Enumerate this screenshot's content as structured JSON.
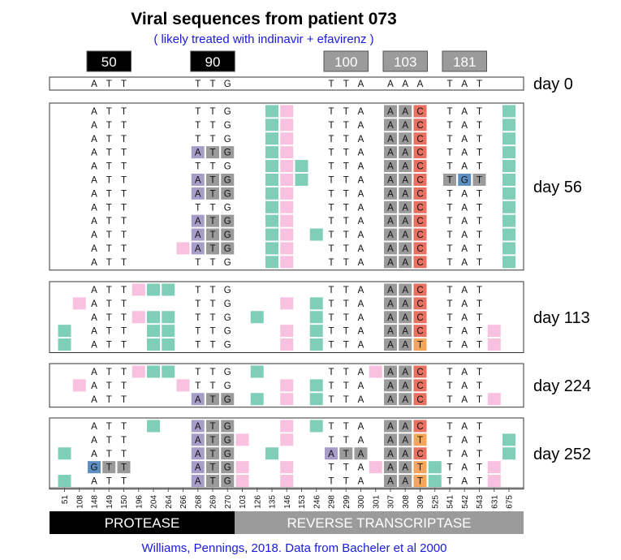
{
  "title": "Viral sequences from patient 073",
  "subtitle": "( likely treated with indinavir + efavirenz )",
  "citation": "Williams, Pennings, 2018. Data from Bacheler et al 2000",
  "colors": {
    "pink": "#f7c1df",
    "teal": "#7fcfb8",
    "purple": "#a79dc9",
    "darkgray": "#9a9a9a",
    "red": "#e87061",
    "orange": "#f5a55a",
    "blue": "#5e8fc2",
    "black": "#000000",
    "midgray": "#9b9b9b",
    "protease_bar": "#000000",
    "rt_bar": "#9b9b9b"
  },
  "codon_labels": [
    {
      "label": "50",
      "style": "black"
    },
    {
      "label": "90",
      "style": "black"
    },
    {
      "label": "100",
      "style": "gray"
    },
    {
      "label": "103",
      "style": "gray"
    },
    {
      "label": "181",
      "style": "gray"
    }
  ],
  "positions": [
    "51",
    "108",
    "148",
    "149",
    "150",
    "196",
    "204",
    "264",
    "266",
    "268",
    "269",
    "270",
    "103",
    "126",
    "135",
    "146",
    "153",
    "246",
    "298",
    "299",
    "300",
    "301",
    "307",
    "308",
    "309",
    "525",
    "541",
    "542",
    "543",
    "631",
    "675"
  ],
  "regions": {
    "protease": "PROTEASE",
    "rt": "REVERSE TRANSCRIPTASE"
  },
  "panels": [
    {
      "label": "day 0",
      "rows": [
        {
          "letters": {
            "148": "A",
            "149": "T",
            "150": "T",
            "268": "T",
            "269": "T",
            "270": "G",
            "298": "T",
            "299": "T",
            "300": "A",
            "307": "A",
            "308": "A",
            "309": "A",
            "541": "T",
            "542": "A",
            "543": "T"
          },
          "cells": {}
        }
      ]
    },
    {
      "label": "day 56",
      "rows": [
        {
          "letters": {
            "148": "A",
            "149": "T",
            "150": "T",
            "268": "T",
            "269": "T",
            "270": "G",
            "298": "T",
            "299": "T",
            "300": "A",
            "307": "A",
            "308": "A",
            "309": "C",
            "541": "T",
            "542": "A",
            "543": "T"
          },
          "cells": {
            "135": "teal",
            "146": "pink",
            "307": "darkgray",
            "308": "darkgray",
            "309": "red",
            "675": "teal"
          }
        },
        {
          "letters": {
            "148": "A",
            "149": "T",
            "150": "T",
            "268": "T",
            "269": "T",
            "270": "G",
            "298": "T",
            "299": "T",
            "300": "A",
            "307": "A",
            "308": "A",
            "309": "C",
            "541": "T",
            "542": "A",
            "543": "T"
          },
          "cells": {
            "135": "teal",
            "146": "pink",
            "307": "darkgray",
            "308": "darkgray",
            "309": "red",
            "675": "teal"
          }
        },
        {
          "letters": {
            "148": "A",
            "149": "T",
            "150": "T",
            "268": "T",
            "269": "T",
            "270": "G",
            "298": "T",
            "299": "T",
            "300": "A",
            "307": "A",
            "308": "A",
            "309": "C",
            "541": "T",
            "542": "A",
            "543": "T"
          },
          "cells": {
            "135": "teal",
            "146": "pink",
            "307": "darkgray",
            "308": "darkgray",
            "309": "red",
            "675": "teal"
          }
        },
        {
          "letters": {
            "148": "A",
            "149": "T",
            "150": "T",
            "268": "A",
            "269": "T",
            "270": "G",
            "298": "T",
            "299": "T",
            "300": "A",
            "307": "A",
            "308": "A",
            "309": "C",
            "541": "T",
            "542": "A",
            "543": "T"
          },
          "cells": {
            "135": "teal",
            "146": "pink",
            "268": "purple",
            "269": "darkgray",
            "270": "darkgray",
            "307": "darkgray",
            "308": "darkgray",
            "309": "red",
            "675": "teal"
          }
        },
        {
          "letters": {
            "148": "A",
            "149": "T",
            "150": "T",
            "268": "T",
            "269": "T",
            "270": "G",
            "298": "T",
            "299": "T",
            "300": "A",
            "307": "A",
            "308": "A",
            "309": "C",
            "541": "T",
            "542": "A",
            "543": "T"
          },
          "cells": {
            "135": "teal",
            "146": "pink",
            "153": "teal",
            "307": "darkgray",
            "308": "darkgray",
            "309": "red",
            "675": "teal"
          }
        },
        {
          "letters": {
            "148": "A",
            "149": "T",
            "150": "T",
            "268": "A",
            "269": "T",
            "270": "G",
            "298": "T",
            "299": "T",
            "300": "A",
            "307": "A",
            "308": "A",
            "309": "C",
            "541": "T",
            "542": "G",
            "543": "T"
          },
          "cells": {
            "135": "teal",
            "146": "pink",
            "153": "teal",
            "268": "purple",
            "269": "darkgray",
            "270": "darkgray",
            "307": "darkgray",
            "308": "darkgray",
            "309": "red",
            "541": "darkgray",
            "542": "blue",
            "543": "darkgray",
            "675": "teal"
          }
        },
        {
          "letters": {
            "148": "A",
            "149": "T",
            "150": "T",
            "268": "A",
            "269": "T",
            "270": "G",
            "298": "T",
            "299": "T",
            "300": "A",
            "307": "A",
            "308": "A",
            "309": "C",
            "541": "T",
            "542": "A",
            "543": "T"
          },
          "cells": {
            "135": "teal",
            "146": "pink",
            "268": "purple",
            "269": "darkgray",
            "270": "darkgray",
            "307": "darkgray",
            "308": "darkgray",
            "309": "red",
            "675": "teal"
          }
        },
        {
          "letters": {
            "148": "A",
            "149": "T",
            "150": "T",
            "268": "T",
            "269": "T",
            "270": "G",
            "298": "T",
            "299": "T",
            "300": "A",
            "307": "A",
            "308": "A",
            "309": "C",
            "541": "T",
            "542": "A",
            "543": "T"
          },
          "cells": {
            "135": "teal",
            "146": "pink",
            "307": "darkgray",
            "308": "darkgray",
            "309": "red",
            "675": "teal"
          }
        },
        {
          "letters": {
            "148": "A",
            "149": "T",
            "150": "T",
            "268": "A",
            "269": "T",
            "270": "G",
            "298": "T",
            "299": "T",
            "300": "A",
            "307": "A",
            "308": "A",
            "309": "C",
            "541": "T",
            "542": "A",
            "543": "T"
          },
          "cells": {
            "135": "teal",
            "146": "pink",
            "268": "purple",
            "269": "darkgray",
            "270": "darkgray",
            "307": "darkgray",
            "308": "darkgray",
            "309": "red",
            "675": "teal"
          }
        },
        {
          "letters": {
            "148": "A",
            "149": "T",
            "150": "T",
            "268": "A",
            "269": "T",
            "270": "G",
            "298": "T",
            "299": "T",
            "300": "A",
            "307": "A",
            "308": "A",
            "309": "C",
            "541": "T",
            "542": "A",
            "543": "T"
          },
          "cells": {
            "135": "teal",
            "146": "pink",
            "246": "teal",
            "268": "purple",
            "269": "darkgray",
            "270": "darkgray",
            "307": "darkgray",
            "308": "darkgray",
            "309": "red",
            "675": "teal"
          }
        },
        {
          "letters": {
            "148": "A",
            "149": "T",
            "150": "T",
            "268": "A",
            "269": "T",
            "270": "G",
            "298": "T",
            "299": "T",
            "300": "A",
            "307": "A",
            "308": "A",
            "309": "C",
            "541": "T",
            "542": "A",
            "543": "T"
          },
          "cells": {
            "135": "teal",
            "146": "pink",
            "266": "pink",
            "268": "purple",
            "269": "darkgray",
            "270": "darkgray",
            "307": "darkgray",
            "308": "darkgray",
            "309": "red",
            "675": "teal"
          }
        },
        {
          "letters": {
            "148": "A",
            "149": "T",
            "150": "T",
            "268": "T",
            "269": "T",
            "270": "G",
            "298": "T",
            "299": "T",
            "300": "A",
            "307": "A",
            "308": "A",
            "309": "C",
            "541": "T",
            "542": "A",
            "543": "T"
          },
          "cells": {
            "135": "teal",
            "146": "pink",
            "307": "darkgray",
            "308": "darkgray",
            "309": "red",
            "675": "teal"
          }
        }
      ]
    },
    {
      "label": "day 113",
      "rows": [
        {
          "letters": {
            "148": "A",
            "149": "T",
            "150": "T",
            "268": "T",
            "269": "T",
            "270": "G",
            "298": "T",
            "299": "T",
            "300": "A",
            "307": "A",
            "308": "A",
            "309": "C",
            "541": "T",
            "542": "A",
            "543": "T"
          },
          "cells": {
            "196": "pink",
            "204": "teal",
            "264": "teal",
            "307": "darkgray",
            "308": "darkgray",
            "309": "red"
          }
        },
        {
          "letters": {
            "148": "A",
            "149": "T",
            "150": "T",
            "268": "T",
            "269": "T",
            "270": "G",
            "298": "T",
            "299": "T",
            "300": "A",
            "307": "A",
            "308": "A",
            "309": "C",
            "541": "T",
            "542": "A",
            "543": "T"
          },
          "cells": {
            "108": "pink",
            "146": "pink",
            "246": "teal",
            "307": "darkgray",
            "308": "darkgray",
            "309": "red"
          }
        },
        {
          "letters": {
            "148": "A",
            "149": "T",
            "150": "T",
            "268": "T",
            "269": "T",
            "270": "G",
            "298": "T",
            "299": "T",
            "300": "A",
            "307": "A",
            "308": "A",
            "309": "C",
            "541": "T",
            "542": "A",
            "543": "T"
          },
          "cells": {
            "196": "pink",
            "204": "teal",
            "264": "teal",
            "126": "teal",
            "246": "teal",
            "307": "darkgray",
            "308": "darkgray",
            "309": "red"
          }
        },
        {
          "letters": {
            "148": "A",
            "149": "T",
            "150": "T",
            "268": "T",
            "269": "T",
            "270": "G",
            "298": "T",
            "299": "T",
            "300": "A",
            "307": "A",
            "308": "A",
            "309": "C",
            "541": "T",
            "542": "A",
            "543": "T"
          },
          "cells": {
            "51": "teal",
            "204": "teal",
            "264": "teal",
            "146": "pink",
            "246": "teal",
            "307": "darkgray",
            "308": "darkgray",
            "309": "red",
            "631": "pink"
          }
        },
        {
          "letters": {
            "148": "A",
            "149": "T",
            "150": "T",
            "268": "T",
            "269": "T",
            "270": "G",
            "298": "T",
            "299": "T",
            "300": "A",
            "307": "A",
            "308": "A",
            "309": "T",
            "541": "T",
            "542": "A",
            "543": "T"
          },
          "cells": {
            "51": "teal",
            "204": "teal",
            "264": "teal",
            "146": "pink",
            "246": "teal",
            "307": "darkgray",
            "308": "darkgray",
            "309": "orange",
            "631": "pink"
          }
        }
      ]
    },
    {
      "label": "day 224",
      "rows": [
        {
          "letters": {
            "148": "A",
            "149": "T",
            "150": "T",
            "268": "T",
            "269": "T",
            "270": "G",
            "298": "T",
            "299": "T",
            "300": "A",
            "307": "A",
            "308": "A",
            "309": "C",
            "541": "T",
            "542": "A",
            "543": "T"
          },
          "cells": {
            "196": "pink",
            "204": "teal",
            "264": "teal",
            "126": "teal",
            "301": "pink",
            "307": "darkgray",
            "308": "darkgray",
            "309": "red"
          }
        },
        {
          "letters": {
            "148": "A",
            "149": "T",
            "150": "T",
            "268": "T",
            "269": "T",
            "270": "G",
            "298": "T",
            "299": "T",
            "300": "A",
            "307": "A",
            "308": "A",
            "309": "C",
            "541": "T",
            "542": "A",
            "543": "T"
          },
          "cells": {
            "108": "pink",
            "266": "pink",
            "146": "pink",
            "246": "teal",
            "307": "darkgray",
            "308": "darkgray",
            "309": "red"
          }
        },
        {
          "letters": {
            "148": "A",
            "149": "T",
            "150": "T",
            "268": "A",
            "269": "T",
            "270": "G",
            "298": "T",
            "299": "T",
            "300": "A",
            "307": "A",
            "308": "A",
            "309": "C",
            "541": "T",
            "542": "A",
            "543": "T"
          },
          "cells": {
            "268": "purple",
            "269": "darkgray",
            "270": "darkgray",
            "126": "teal",
            "146": "pink",
            "246": "teal",
            "307": "darkgray",
            "308": "darkgray",
            "309": "red",
            "631": "pink"
          }
        }
      ]
    },
    {
      "label": "day 252",
      "rows": [
        {
          "letters": {
            "148": "A",
            "149": "T",
            "150": "T",
            "268": "A",
            "269": "T",
            "270": "G",
            "298": "T",
            "299": "T",
            "300": "A",
            "307": "A",
            "308": "A",
            "309": "C",
            "541": "T",
            "542": "A",
            "543": "T"
          },
          "cells": {
            "204": "teal",
            "268": "purple",
            "269": "darkgray",
            "270": "darkgray",
            "146": "pink",
            "246": "teal",
            "307": "darkgray",
            "308": "darkgray",
            "309": "red"
          }
        },
        {
          "letters": {
            "148": "A",
            "149": "T",
            "150": "T",
            "268": "A",
            "269": "T",
            "270": "G",
            "298": "T",
            "299": "T",
            "300": "A",
            "307": "A",
            "308": "A",
            "309": "T",
            "541": "T",
            "542": "A",
            "543": "T"
          },
          "cells": {
            "268": "purple",
            "269": "darkgray",
            "270": "darkgray",
            "103": "pink",
            "146": "pink",
            "307": "darkgray",
            "308": "darkgray",
            "309": "orange",
            "675": "teal"
          }
        },
        {
          "letters": {
            "148": "A",
            "149": "T",
            "150": "T",
            "268": "A",
            "269": "T",
            "270": "G",
            "298": "A",
            "299": "T",
            "300": "A",
            "307": "A",
            "308": "A",
            "309": "C",
            "541": "T",
            "542": "A",
            "543": "T"
          },
          "cells": {
            "51": "teal",
            "268": "purple",
            "269": "darkgray",
            "270": "darkgray",
            "135": "teal",
            "298": "purple",
            "299": "darkgray",
            "300": "darkgray",
            "307": "darkgray",
            "308": "darkgray",
            "309": "red",
            "675": "teal"
          }
        },
        {
          "letters": {
            "148": "G",
            "149": "T",
            "150": "T",
            "268": "A",
            "269": "T",
            "270": "G",
            "298": "T",
            "299": "T",
            "300": "A",
            "307": "A",
            "308": "A",
            "309": "T",
            "541": "T",
            "542": "A",
            "543": "T"
          },
          "cells": {
            "148": "blue",
            "149": "darkgray",
            "150": "darkgray",
            "268": "purple",
            "269": "darkgray",
            "270": "darkgray",
            "103": "pink",
            "146": "pink",
            "301": "pink",
            "307": "darkgray",
            "308": "darkgray",
            "309": "orange",
            "525": "teal",
            "631": "pink"
          }
        },
        {
          "letters": {
            "148": "A",
            "149": "T",
            "150": "T",
            "268": "A",
            "269": "T",
            "270": "G",
            "298": "T",
            "299": "T",
            "300": "A",
            "307": "A",
            "308": "A",
            "309": "T",
            "541": "T",
            "542": "A",
            "543": "T"
          },
          "cells": {
            "51": "teal",
            "268": "purple",
            "269": "darkgray",
            "270": "darkgray",
            "103": "pink",
            "146": "pink",
            "307": "darkgray",
            "308": "darkgray",
            "309": "orange",
            "525": "teal",
            "631": "pink"
          }
        }
      ]
    }
  ]
}
